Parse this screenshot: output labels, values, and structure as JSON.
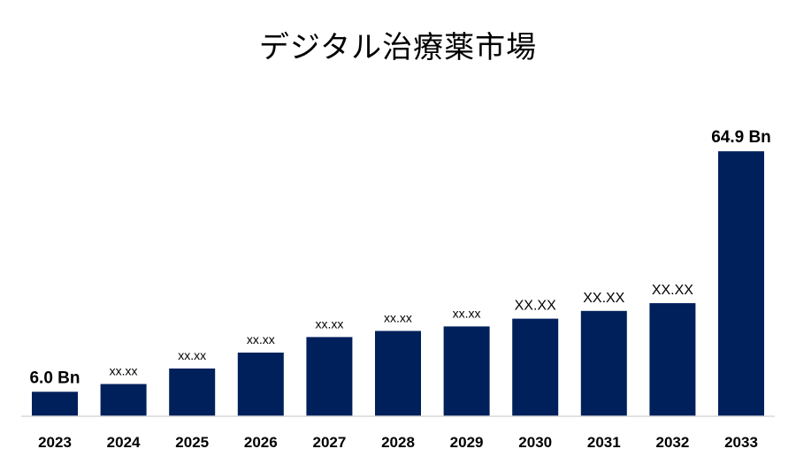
{
  "chart_data": {
    "type": "bar",
    "title": "デジタル治療薬市場",
    "xlabel": "",
    "ylabel": "",
    "categories": [
      "2023",
      "2024",
      "2025",
      "2026",
      "2027",
      "2028",
      "2029",
      "2030",
      "2031",
      "2032",
      "2033"
    ],
    "values": [
      6.0,
      7.9,
      11.7,
      15.6,
      19.4,
      20.9,
      22.0,
      23.9,
      25.8,
      27.7,
      64.9
    ],
    "data_labels": [
      "6.0 Bn",
      "xx.xx",
      "xx.xx",
      "xx.xx",
      "xx.xx",
      "xx.xx",
      "xx.xx",
      "XX.XX",
      "XX.XX",
      "XX.XX",
      "64.9 Bn"
    ],
    "color": "#00205b",
    "grid": false,
    "legend": "none"
  }
}
